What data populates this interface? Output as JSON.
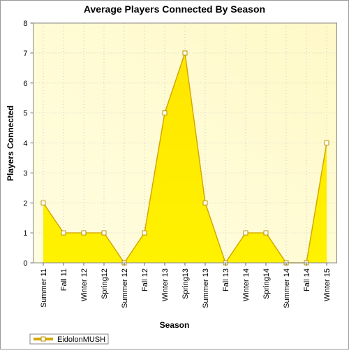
{
  "chart_data": {
    "type": "area",
    "title": "Average Players Connected By Season",
    "x_label": "Season",
    "y_label": "Players Connected",
    "categories": [
      "Summer 11",
      "Fall 11",
      "Winter 12",
      "Spring12",
      "Summer 12",
      "Fall 12",
      "Winter 13",
      "Spring13",
      "Summer 13",
      "Fall 13",
      "Winter 14",
      "Spring14",
      "Summer 14",
      "Fall 14",
      "Winter 15"
    ],
    "series": [
      {
        "name": "EidolonMUSH",
        "color": "#ffee00",
        "values": [
          2,
          1,
          1,
          1,
          0,
          1,
          5,
          7,
          2,
          0,
          1,
          1,
          0,
          0,
          4
        ]
      }
    ],
    "ylim": [
      0,
      8
    ],
    "yticks": [
      0,
      1,
      2,
      3,
      4,
      5,
      6,
      7,
      8
    ],
    "grid": true
  }
}
